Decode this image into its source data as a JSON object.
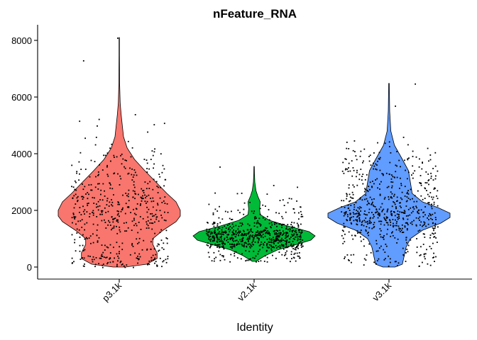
{
  "chart_data": {
    "type": "violin",
    "title": "nFeature_RNA",
    "xlabel": "Identity",
    "ylabel": "",
    "ylim": [
      -400,
      8300
    ],
    "yticks": [
      0,
      2000,
      4000,
      6000,
      8000
    ],
    "y_tick_labels": [
      "0",
      "2000",
      "4000",
      "6000",
      "8000"
    ],
    "categories": [
      "p3.1k",
      "v2.1k",
      "v3.1k"
    ],
    "grid": false,
    "legend": "none",
    "series": [
      {
        "category": "p3.1k",
        "color": "#F8766D",
        "max": 8100,
        "density": [
          [
            0,
            0.1
          ],
          [
            100,
            0.45
          ],
          [
            300,
            0.62
          ],
          [
            500,
            0.62
          ],
          [
            800,
            0.55
          ],
          [
            1000,
            0.55
          ],
          [
            1300,
            0.72
          ],
          [
            1600,
            0.93
          ],
          [
            1800,
            1.0
          ],
          [
            2000,
            1.0
          ],
          [
            2300,
            0.93
          ],
          [
            2600,
            0.78
          ],
          [
            3000,
            0.6
          ],
          [
            3400,
            0.42
          ],
          [
            3800,
            0.25
          ],
          [
            4200,
            0.13
          ],
          [
            4600,
            0.07
          ],
          [
            5000,
            0.05
          ],
          [
            5400,
            0.03
          ],
          [
            5800,
            0.015
          ],
          [
            6500,
            0.006
          ],
          [
            7500,
            0.004
          ],
          [
            8100,
            0.003
          ]
        ],
        "point_bands": [
          [
            0,
            500,
            90
          ],
          [
            500,
            1000,
            50
          ],
          [
            1000,
            1500,
            50
          ],
          [
            1500,
            2000,
            95
          ],
          [
            2000,
            2500,
            90
          ],
          [
            2500,
            3000,
            65
          ],
          [
            3000,
            3500,
            45
          ],
          [
            3500,
            4000,
            30
          ],
          [
            4000,
            4500,
            12
          ],
          [
            4500,
            5500,
            6
          ]
        ],
        "outliers": [
          5400,
          7300,
          8100,
          4600,
          5000
        ]
      },
      {
        "category": "v2.1k",
        "color": "#00BA38",
        "max": 3550,
        "density": [
          [
            200,
            0.03
          ],
          [
            400,
            0.18
          ],
          [
            600,
            0.38
          ],
          [
            800,
            0.7
          ],
          [
            950,
            0.93
          ],
          [
            1100,
            1.0
          ],
          [
            1250,
            0.9
          ],
          [
            1450,
            0.55
          ],
          [
            1650,
            0.25
          ],
          [
            1850,
            0.1
          ],
          [
            2050,
            0.09
          ],
          [
            2300,
            0.1
          ],
          [
            2500,
            0.06
          ],
          [
            2700,
            0.03
          ],
          [
            3000,
            0.012
          ],
          [
            3300,
            0.006
          ],
          [
            3550,
            0.004
          ]
        ],
        "point_bands": [
          [
            200,
            700,
            80
          ],
          [
            700,
            1000,
            200
          ],
          [
            1000,
            1300,
            260
          ],
          [
            1300,
            1600,
            110
          ],
          [
            1600,
            2000,
            40
          ],
          [
            2000,
            2500,
            22
          ],
          [
            2500,
            3000,
            5
          ]
        ],
        "outliers": [
          3550,
          2900
        ]
      },
      {
        "category": "v3.1k",
        "color": "#619CFF",
        "max": 6480,
        "density": [
          [
            0,
            0.1
          ],
          [
            100,
            0.22
          ],
          [
            400,
            0.25
          ],
          [
            700,
            0.28
          ],
          [
            1000,
            0.35
          ],
          [
            1300,
            0.55
          ],
          [
            1550,
            0.85
          ],
          [
            1750,
            1.0
          ],
          [
            1900,
            1.0
          ],
          [
            2100,
            0.8
          ],
          [
            2300,
            0.55
          ],
          [
            2600,
            0.38
          ],
          [
            3000,
            0.35
          ],
          [
            3400,
            0.32
          ],
          [
            3800,
            0.22
          ],
          [
            4300,
            0.09
          ],
          [
            4800,
            0.03
          ],
          [
            5500,
            0.012
          ],
          [
            6480,
            0.005
          ]
        ],
        "point_bands": [
          [
            0,
            500,
            45
          ],
          [
            500,
            1000,
            35
          ],
          [
            1000,
            1500,
            90
          ],
          [
            1500,
            2000,
            190
          ],
          [
            2000,
            2500,
            110
          ],
          [
            2500,
            3000,
            70
          ],
          [
            3000,
            3500,
            65
          ],
          [
            3500,
            4000,
            45
          ],
          [
            4000,
            4500,
            20
          ]
        ],
        "outliers": [
          6480,
          5700,
          4600
        ]
      }
    ]
  }
}
